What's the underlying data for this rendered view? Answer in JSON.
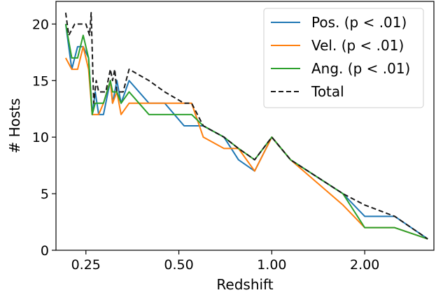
{
  "chart_data": {
    "type": "line",
    "xlabel": "Redshift",
    "ylabel": "# Hosts",
    "xscale": "log",
    "xlim": [
      0.2,
      3.35
    ],
    "ylim": [
      0,
      22
    ],
    "x_ticks": [
      0.25,
      0.5,
      1.0,
      2.0
    ],
    "x_tick_labels": [
      "0.25",
      "0.50",
      "1.00",
      "2.00"
    ],
    "y_ticks": [
      0,
      5,
      10,
      15,
      20
    ],
    "y_tick_labels": [
      "0",
      "5",
      "10",
      "15",
      "20"
    ],
    "grid": false,
    "legend_position": "top-right",
    "series": [
      {
        "name": "Pos. (p < .01)",
        "color": "#1f77b4",
        "dash": "solid",
        "x": [
          0.215,
          0.225,
          0.235,
          0.245,
          0.255,
          0.262,
          0.268,
          0.275,
          0.285,
          0.3,
          0.305,
          0.315,
          0.325,
          0.345,
          0.4,
          0.45,
          0.52,
          0.55,
          0.6,
          0.7,
          0.78,
          0.88,
          1.0,
          1.15,
          1.7,
          2.0,
          2.5,
          3.2
        ],
        "values": [
          20,
          16,
          18,
          18,
          17,
          12,
          14,
          12,
          12,
          15,
          13,
          15,
          13,
          15,
          13,
          13,
          11,
          11,
          11,
          10,
          8,
          7,
          10,
          8,
          5,
          3,
          3,
          1
        ]
      },
      {
        "name": "Vel. (p < .01)",
        "color": "#ff7f0e",
        "dash": "solid",
        "x": [
          0.215,
          0.225,
          0.235,
          0.245,
          0.255,
          0.262,
          0.268,
          0.275,
          0.285,
          0.3,
          0.305,
          0.315,
          0.325,
          0.345,
          0.4,
          0.45,
          0.52,
          0.55,
          0.6,
          0.7,
          0.78,
          0.88,
          1.0,
          1.15,
          1.7,
          2.0,
          2.5,
          3.2
        ],
        "values": [
          17,
          16,
          16,
          18,
          16,
          12,
          12,
          12,
          13,
          15,
          13,
          14,
          12,
          13,
          13,
          13,
          13,
          13,
          10,
          9,
          9,
          7,
          10,
          8,
          4,
          2,
          2,
          1
        ]
      },
      {
        "name": "Ang. (p < .01)",
        "color": "#2ca02c",
        "dash": "solid",
        "x": [
          0.215,
          0.225,
          0.235,
          0.245,
          0.255,
          0.262,
          0.268,
          0.275,
          0.285,
          0.3,
          0.305,
          0.315,
          0.325,
          0.345,
          0.4,
          0.45,
          0.52,
          0.55,
          0.6,
          0.7,
          0.78,
          0.88,
          1.0,
          1.15,
          1.7,
          2.0,
          2.5,
          3.2
        ],
        "values": [
          20,
          17,
          17,
          19,
          17,
          12,
          13,
          13,
          13,
          15,
          14,
          14,
          13,
          14,
          12,
          12,
          12,
          12,
          11,
          10,
          9,
          8,
          10,
          8,
          5,
          2,
          2,
          1
        ]
      },
      {
        "name": "Total",
        "color": "#1a1a1a",
        "dash": "dashed",
        "x": [
          0.215,
          0.22,
          0.23,
          0.24,
          0.25,
          0.257,
          0.26,
          0.265,
          0.27,
          0.275,
          0.28,
          0.29,
          0.3,
          0.305,
          0.31,
          0.315,
          0.32,
          0.33,
          0.345,
          0.4,
          0.45,
          0.52,
          0.55,
          0.6,
          0.7,
          0.78,
          0.88,
          1.0,
          1.15,
          1.7,
          2.0,
          2.5,
          3.2
        ],
        "values": [
          21,
          19,
          20,
          20,
          20,
          19,
          21,
          13,
          15,
          14,
          14,
          14,
          16,
          15,
          16,
          14,
          14,
          14,
          16,
          15,
          14,
          13,
          13,
          11,
          10,
          9,
          8,
          10,
          8,
          5,
          4,
          3,
          1
        ]
      }
    ]
  }
}
